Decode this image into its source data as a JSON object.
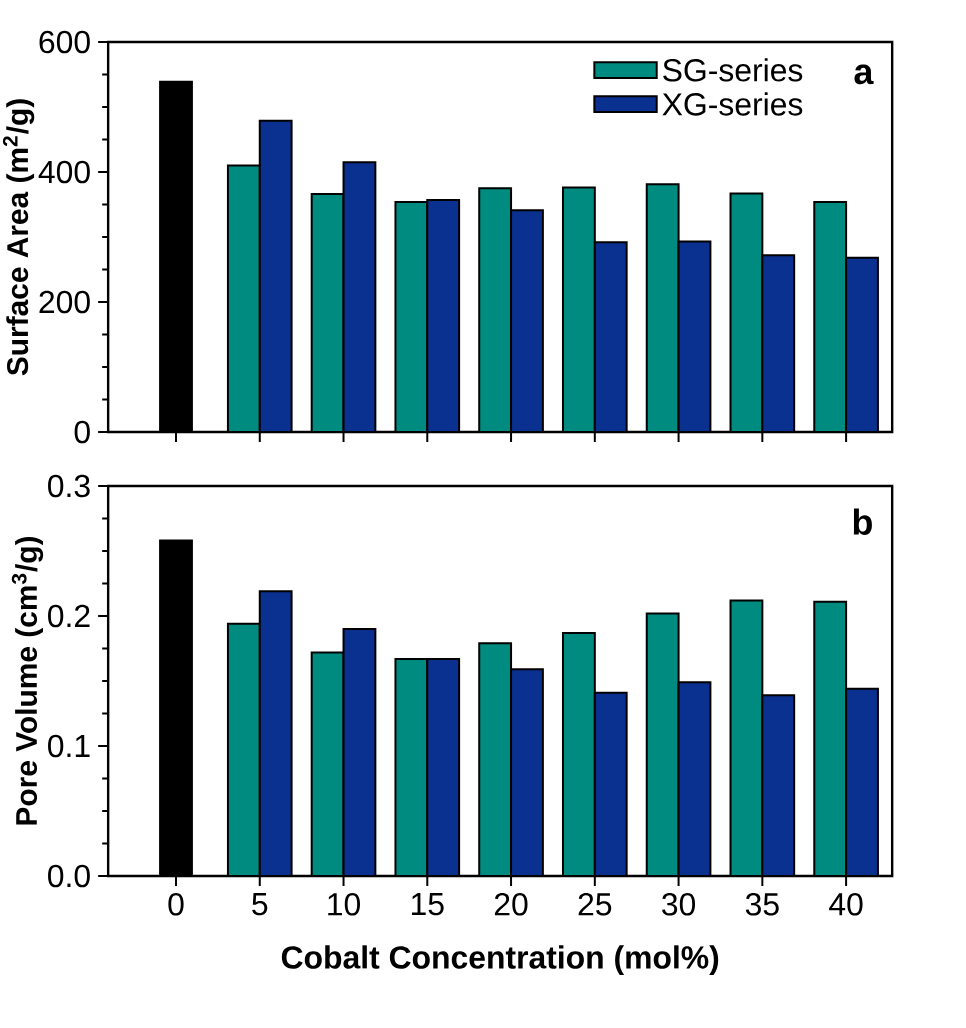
{
  "chart_data": [
    {
      "type": "bar",
      "ylabel": "Surface Area (m$^{2}$/g)",
      "categories": [
        "0",
        "5",
        "10",
        "15",
        "20",
        "25",
        "30",
        "35",
        "40"
      ],
      "series": [
        {
          "color": "#000000",
          "values": [
            539,
            null,
            null,
            null,
            null,
            null,
            null,
            null,
            null
          ]
        },
        {
          "name": "SG-series",
          "color": "#008b80",
          "values": [
            null,
            410,
            366,
            354,
            375,
            376,
            381,
            367,
            354
          ]
        },
        {
          "name": "XG-series",
          "color": "#0a318f",
          "values": [
            null,
            479,
            415,
            357,
            341,
            292,
            293,
            272,
            268
          ]
        }
      ],
      "ylim": [
        0,
        600
      ],
      "yticks": [
        0,
        200,
        400,
        600
      ],
      "legend": "top right",
      "tick_labels": "y",
      "annotations": [
        "a"
      ]
    },
    {
      "type": "bar",
      "ylabel": "Pore Volume (cm$^{3}$/g)",
      "xlabel": "Cobalt Concentration (mol%)",
      "categories": [
        "0",
        "5",
        "10",
        "15",
        "20",
        "25",
        "30",
        "35",
        "40"
      ],
      "series": [
        {
          "color": "#000000",
          "values": [
            0.258,
            null,
            null,
            null,
            null,
            null,
            null,
            null,
            null
          ]
        },
        {
          "color": "#008b80",
          "values": [
            null,
            0.194,
            0.172,
            0.167,
            0.179,
            0.187,
            0.202,
            0.212,
            0.211
          ]
        },
        {
          "color": "#0a318f",
          "values": [
            null,
            0.219,
            0.19,
            0.167,
            0.159,
            0.141,
            0.149,
            0.139,
            0.144
          ]
        }
      ],
      "ylim": [
        0,
        0.3
      ],
      "yticks": [
        {
          "value": 0,
          "label": "0.0"
        },
        0.1,
        0.2,
        0.3
      ],
      "annotations": [
        "b"
      ]
    }
  ]
}
